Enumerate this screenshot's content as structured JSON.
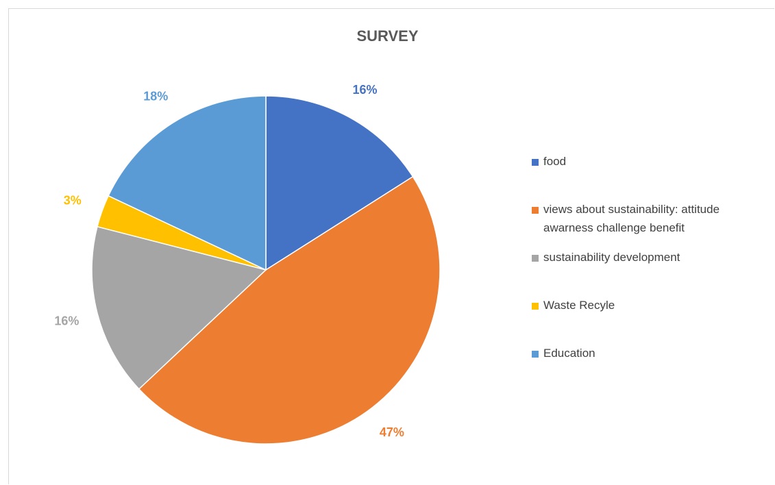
{
  "chart_data": {
    "type": "pie",
    "title": "SURVEY",
    "slices": [
      {
        "label": "food",
        "value": 16,
        "display": "16%",
        "color": "#4472C4"
      },
      {
        "label": "views about sustainability: attitude awarness challenge benefit",
        "value": 47,
        "display": "47%",
        "color": "#ED7D31"
      },
      {
        "label": "sustainability development",
        "value": 16,
        "display": "16%",
        "color": "#A5A5A5"
      },
      {
        "label": "Waste Recyle",
        "value": 3,
        "display": "3%",
        "color": "#FFC000"
      },
      {
        "label": "Education",
        "value": 18,
        "display": "18%",
        "color": "#5B9BD5"
      }
    ],
    "legend_position": "right"
  }
}
